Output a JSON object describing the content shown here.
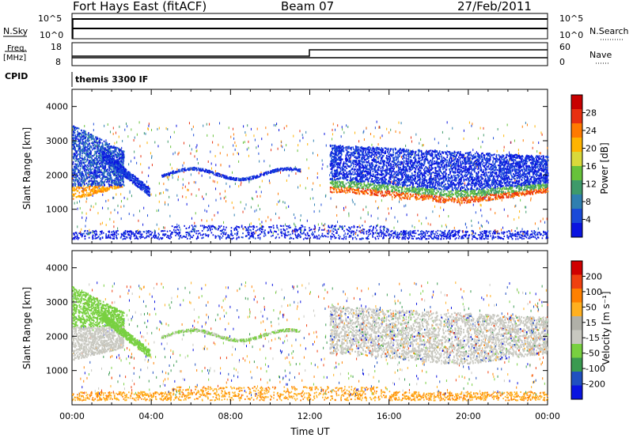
{
  "header": {
    "station": "Fort Hays East (fitACF)",
    "beam": "Beam 07",
    "date": "27/Feb/2011"
  },
  "ticks": {
    "nsky_hi": "10^5",
    "nsky_lo": "10^0",
    "freq_hi": "18",
    "freq_lo": "8",
    "nave_hi": "60",
    "nave_lo": "0"
  },
  "labels": {
    "nsky": "N.Sky",
    "nsearch": "N.Search",
    "freq": "Freq.",
    "freq_unit": "[MHz]",
    "nave": "Nave",
    "cpid": "CPID",
    "cpid_value": "themis 3300 IF"
  },
  "chart_data": [
    {
      "type": "heatmap",
      "name": "power-panel",
      "ylabel": "Slant Range [km]",
      "ylim": [
        0,
        4500
      ],
      "yticks": [
        "1000",
        "2000",
        "3000",
        "4000"
      ],
      "xlabel": "Time UT",
      "xlim_hours": [
        0,
        24
      ],
      "xticks": [
        "00:00",
        "04:00",
        "08:00",
        "12:00",
        "16:00",
        "20:00",
        "00:00"
      ],
      "colorbar": {
        "label": "Power [dB]",
        "ticks": [
          "4",
          "8",
          "12",
          "16",
          "20",
          "24",
          "28"
        ],
        "colors": [
          "#0a14e0",
          "#1a4ad8",
          "#2f7fb0",
          "#3e9a6a",
          "#67c23a",
          "#d9d93a",
          "#ffb400",
          "#ff7a00",
          "#e83010",
          "#c80000"
        ]
      }
    },
    {
      "type": "heatmap",
      "name": "velocity-panel",
      "ylabel": "Slant Range [km]",
      "ylim": [
        0,
        4500
      ],
      "yticks": [
        "1000",
        "2000",
        "3000",
        "4000"
      ],
      "xlabel": "Time UT",
      "xlim_hours": [
        0,
        24
      ],
      "xticks": [
        "00:00",
        "04:00",
        "08:00",
        "12:00",
        "16:00",
        "20:00",
        "00:00"
      ],
      "colorbar": {
        "label": "Velocity [m s⁻¹]",
        "ticks": [
          "200",
          "100",
          "50",
          "15",
          "-15",
          "-50",
          "-100",
          "-200"
        ],
        "colors": [
          "#0a14e0",
          "#2050c0",
          "#3a9a50",
          "#78d040",
          "#c8c8c0",
          "#b0b0a8",
          "#ffb020",
          "#ff8000",
          "#f04010",
          "#d00000"
        ]
      }
    }
  ]
}
